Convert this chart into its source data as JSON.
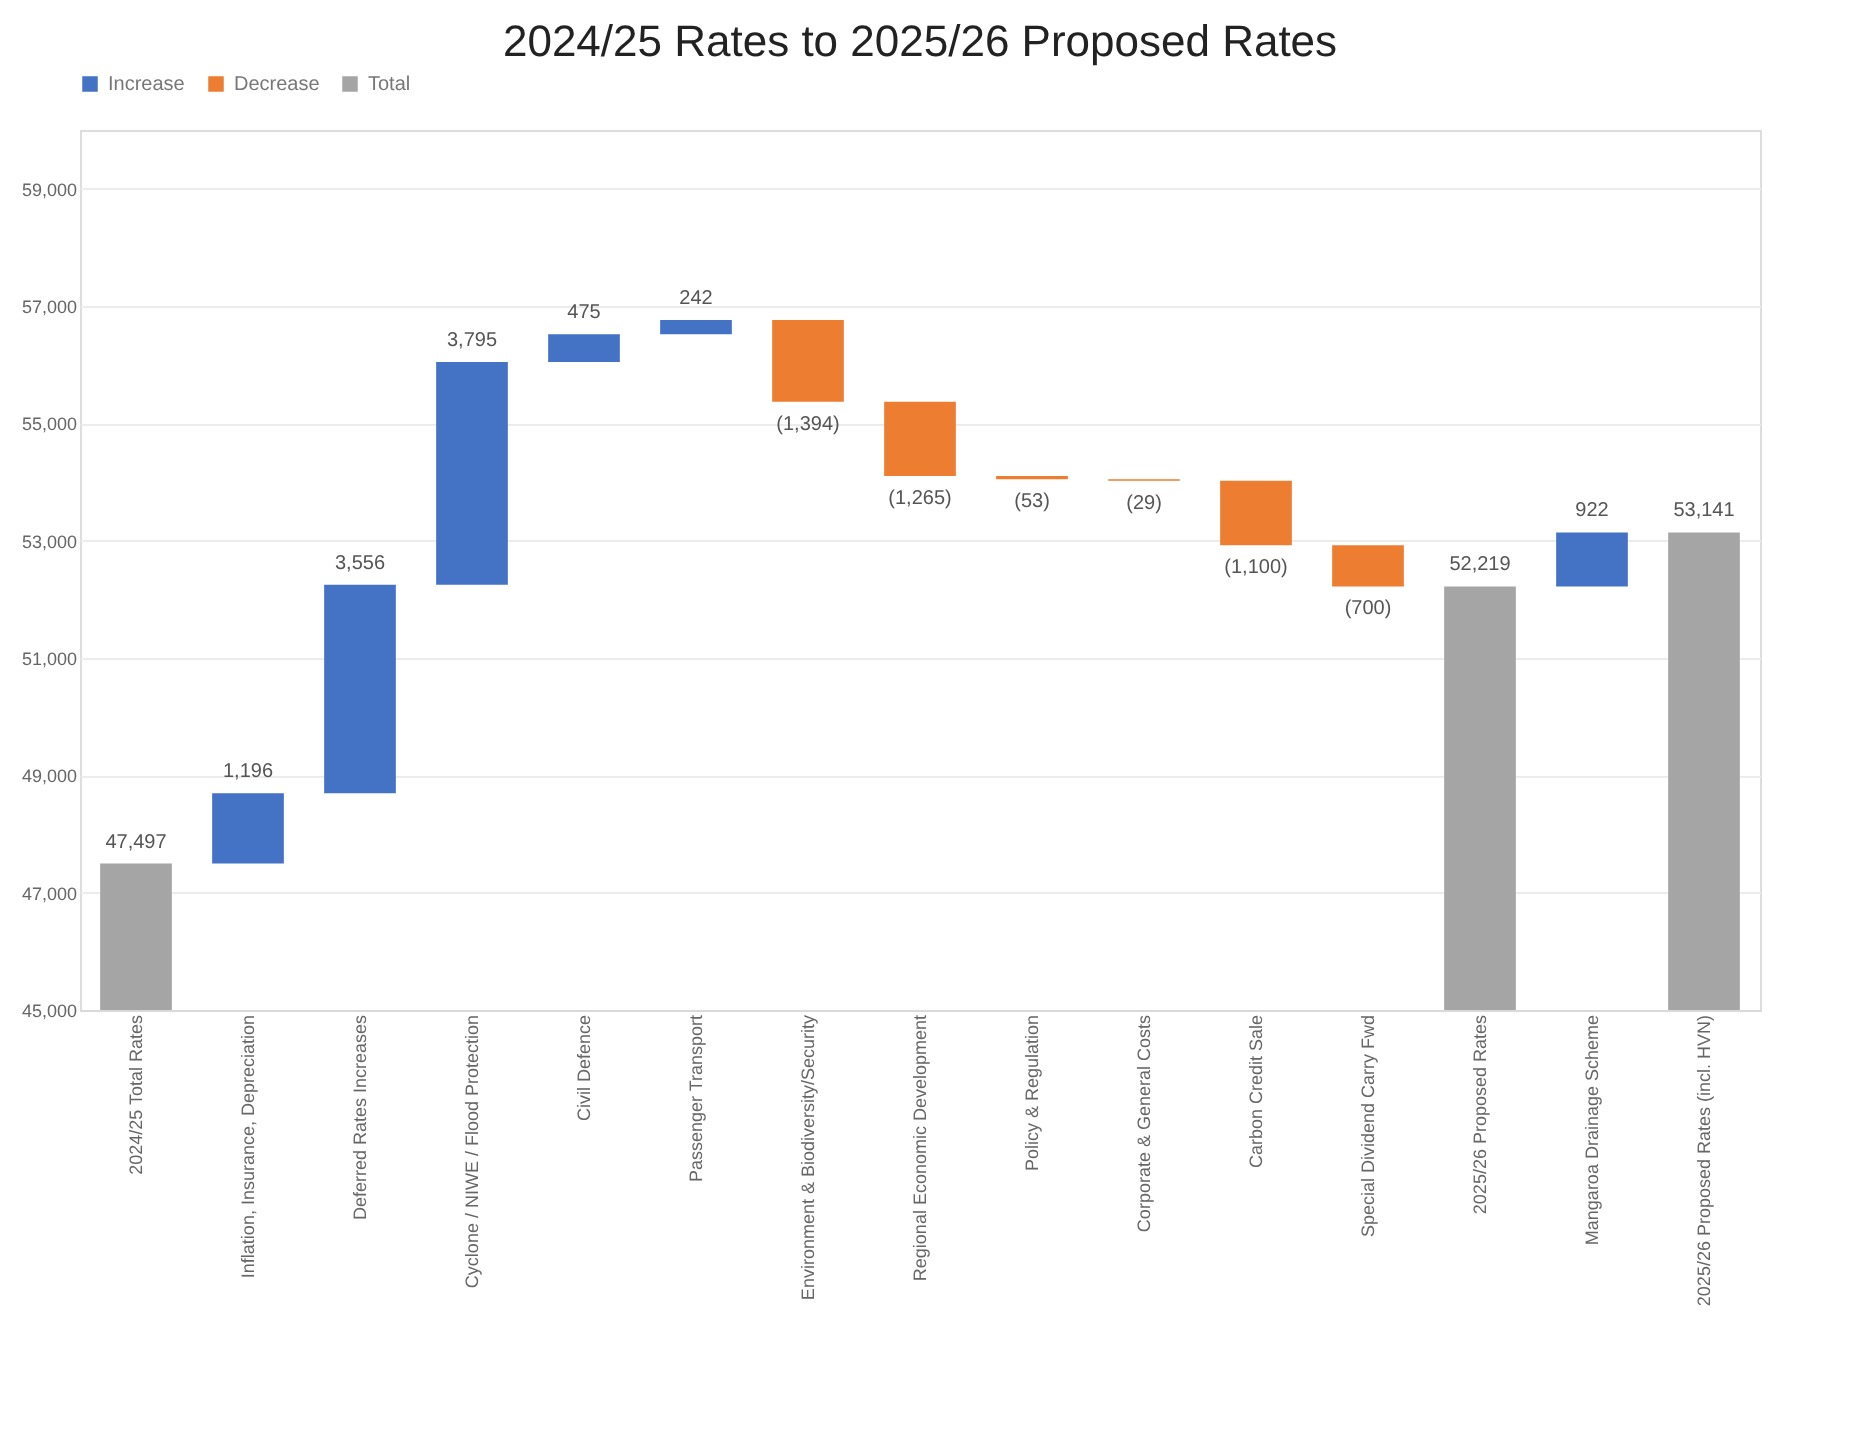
{
  "chart_data": {
    "type": "bar",
    "title": "2024/25 Rates to 2025/26 Proposed Rates",
    "categories": [
      "2024/25 Total Rates",
      "Inflation, Insurance, Depreciation",
      "Deferred Rates Increases",
      "Cyclone / NIWE / Flood Protection",
      "Civil Defence",
      "Passenger Transport",
      "Environment & Biodiversity/Security",
      "Regional Economic Development",
      "Policy & Regulation",
      "Corporate & General Costs",
      "Carbon Credit Sale",
      "Special Dividend Carry Fwd",
      "2025/26 Proposed Rates",
      "Mangaroa Drainage Scheme",
      "2025/26 Proposed Rates (incl. HVN)"
    ],
    "series": [
      {
        "name": "Increase",
        "color": "#4472c4",
        "values": [
          null,
          1196,
          3556,
          3795,
          475,
          242,
          null,
          null,
          null,
          null,
          null,
          null,
          null,
          922,
          null
        ],
        "base": [
          null,
          47497,
          48693,
          52249,
          56044,
          56519,
          null,
          null,
          null,
          null,
          null,
          null,
          null,
          52219,
          null
        ]
      },
      {
        "name": "Decrease",
        "color": "#ed7d31",
        "values": [
          null,
          null,
          null,
          null,
          null,
          null,
          -1394,
          -1265,
          -53,
          -29,
          -1100,
          -700,
          null,
          null,
          null
        ],
        "base": [
          null,
          null,
          null,
          null,
          null,
          null,
          56761,
          55367,
          54102,
          54049,
          54020,
          52920,
          null,
          null,
          null
        ]
      },
      {
        "name": "Total",
        "color": "#a5a5a5",
        "values": [
          47497,
          null,
          null,
          null,
          null,
          null,
          null,
          null,
          null,
          null,
          null,
          null,
          52219,
          null,
          53141
        ]
      }
    ],
    "value_labels": [
      "47,497",
      "1,196",
      "3,556",
      "3,795",
      "475",
      "242",
      "(1,394)",
      "(1,265)",
      "(53)",
      "(29)",
      "(1,100)",
      "(700)",
      "52,219",
      "922",
      "53,141"
    ],
    "ylim": [
      45000,
      60000
    ],
    "yticks": [
      {
        "value": 45000,
        "label": "45,000"
      },
      {
        "value": 47000,
        "label": "47,000"
      },
      {
        "value": 49000,
        "label": "49,000"
      },
      {
        "value": 51000,
        "label": "51,000"
      },
      {
        "value": 53000,
        "label": "53,000"
      },
      {
        "value": 55000,
        "label": "55,000"
      },
      {
        "value": 57000,
        "label": "57,000"
      },
      {
        "value": 59000,
        "label": "59,000"
      }
    ],
    "grid": "y",
    "legend": "top"
  }
}
